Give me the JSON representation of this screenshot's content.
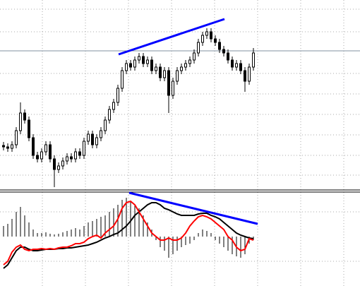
{
  "chart_data": [
    {
      "type": "candlestick",
      "ylim": [
        0,
        268
      ],
      "grid": true,
      "open": [
        62,
        60,
        58,
        63,
        83,
        108,
        98,
        73,
        48,
        43,
        53,
        63,
        43,
        28,
        33,
        40,
        46,
        43,
        53,
        48,
        68,
        78,
        63,
        73,
        83,
        98,
        113,
        123,
        143,
        168,
        178,
        173,
        183,
        188,
        178,
        183,
        168,
        173,
        158,
        168,
        133,
        153,
        168,
        173,
        178,
        183,
        193,
        208,
        218,
        223,
        213,
        208,
        198,
        193,
        183,
        173,
        178,
        168,
        153,
        173
      ],
      "high": [
        67,
        65,
        68,
        88,
        123,
        113,
        103,
        78,
        53,
        58,
        68,
        68,
        48,
        38,
        45,
        51,
        51,
        58,
        58,
        73,
        83,
        83,
        78,
        88,
        103,
        118,
        128,
        148,
        173,
        183,
        183,
        188,
        193,
        193,
        188,
        188,
        178,
        178,
        173,
        173,
        158,
        173,
        178,
        183,
        188,
        198,
        213,
        223,
        228,
        228,
        218,
        213,
        203,
        198,
        188,
        183,
        183,
        173,
        178,
        200
      ],
      "low": [
        55,
        53,
        53,
        58,
        78,
        93,
        68,
        43,
        38,
        38,
        48,
        38,
        3,
        23,
        28,
        35,
        38,
        38,
        43,
        43,
        63,
        58,
        58,
        68,
        78,
        93,
        108,
        118,
        138,
        163,
        168,
        168,
        178,
        173,
        173,
        163,
        163,
        153,
        153,
        108,
        128,
        148,
        163,
        168,
        173,
        178,
        188,
        203,
        213,
        208,
        203,
        193,
        188,
        178,
        168,
        168,
        163,
        138,
        148,
        168
      ],
      "close": [
        60,
        58,
        63,
        83,
        108,
        98,
        73,
        48,
        43,
        53,
        63,
        43,
        28,
        33,
        40,
        46,
        43,
        53,
        48,
        68,
        78,
        63,
        73,
        83,
        98,
        113,
        123,
        143,
        168,
        178,
        173,
        183,
        188,
        178,
        183,
        168,
        173,
        158,
        168,
        133,
        153,
        168,
        173,
        178,
        183,
        193,
        208,
        218,
        223,
        213,
        208,
        198,
        193,
        183,
        173,
        178,
        168,
        153,
        173,
        193
      ]
    },
    {
      "type": "macd",
      "ylim": [
        -70,
        63
      ],
      "histogram": [
        15,
        18,
        25,
        35,
        42,
        30,
        20,
        10,
        5,
        5,
        6,
        4,
        3,
        4,
        6,
        8,
        10,
        12,
        10,
        15,
        20,
        22,
        25,
        28,
        30,
        35,
        40,
        45,
        52,
        55,
        50,
        45,
        40,
        30,
        20,
        10,
        -5,
        -15,
        -20,
        -30,
        -25,
        -20,
        -15,
        -12,
        -10,
        -5,
        5,
        10,
        8,
        5,
        -5,
        -10,
        -15,
        -20,
        -25,
        -28,
        -30,
        -25,
        -10,
        -5
      ],
      "series": [
        {
          "color": "#000000",
          "values": [
            -45,
            -40,
            -30,
            -20,
            -15,
            -15,
            -18,
            -20,
            -20,
            -19,
            -18,
            -18,
            -18,
            -17,
            -17,
            -16,
            -16,
            -15,
            -14,
            -13,
            -12,
            -10,
            -8,
            -5,
            -2,
            0,
            3,
            5,
            10,
            15,
            22,
            30,
            35,
            40,
            45,
            48,
            48,
            45,
            40,
            38,
            35,
            32,
            30,
            30,
            30,
            30,
            32,
            33,
            33,
            30,
            28,
            25,
            20,
            15,
            10,
            5,
            2,
            0,
            -2,
            -3
          ]
        },
        {
          "color": "#ff0000",
          "values": [
            -40,
            -35,
            -22,
            -15,
            -12,
            -18,
            -20,
            -18,
            -18,
            -17,
            -18,
            -17,
            -18,
            -16,
            -15,
            -15,
            -13,
            -10,
            -10,
            -8,
            -3,
            0,
            2,
            -2,
            5,
            10,
            15,
            25,
            40,
            48,
            50,
            45,
            35,
            25,
            15,
            5,
            0,
            -5,
            -5,
            -2,
            -5,
            -5,
            -2,
            5,
            15,
            22,
            28,
            30,
            28,
            25,
            20,
            15,
            10,
            0,
            -5,
            -15,
            -20,
            -18,
            -3,
            -5
          ]
        }
      ]
    }
  ]
}
